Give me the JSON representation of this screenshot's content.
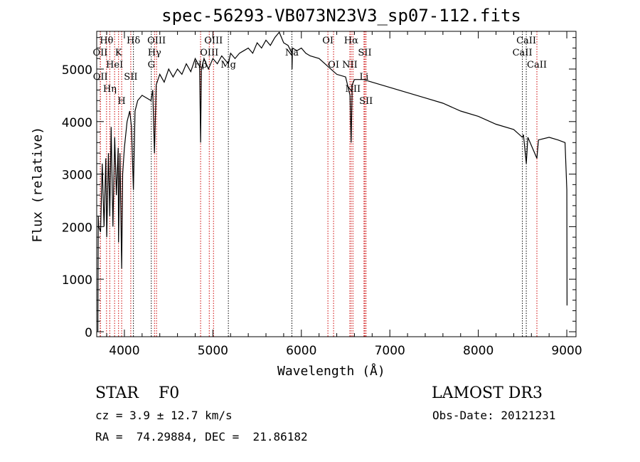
{
  "chart_data": {
    "type": "line",
    "title": "spec-56293-VB073N23V3_sp07-112.fits",
    "xlabel": "Wavelength (Å)",
    "ylabel": "Flux (relative)",
    "xlim": [
      3687,
      9104
    ],
    "ylim": [
      -95,
      5718
    ],
    "xticks": [
      4000,
      5000,
      6000,
      7000,
      8000,
      9000
    ],
    "xtick_labels": [
      "4000",
      "5000",
      "6000",
      "7000",
      "8000",
      "9000"
    ],
    "yticks": [
      0,
      1000,
      2000,
      3000,
      4000,
      5000
    ],
    "ytick_labels": [
      "0",
      "1000",
      "2000",
      "3000",
      "4000",
      "5000"
    ],
    "series": [
      {
        "name": "spectrum",
        "color": "#000000",
        "x": [
          3700,
          3705,
          3710,
          3730,
          3750,
          3770,
          3790,
          3800,
          3820,
          3835,
          3850,
          3870,
          3890,
          3910,
          3930,
          3934,
          3950,
          3969,
          3980,
          4000,
          4030,
          4060,
          4080,
          4102,
          4120,
          4150,
          4200,
          4250,
          4300,
          4320,
          4340,
          4360,
          4400,
          4450,
          4500,
          4550,
          4600,
          4650,
          4700,
          4750,
          4800,
          4850,
          4861,
          4870,
          4900,
          4950,
          5000,
          5050,
          5100,
          5175,
          5200,
          5250,
          5300,
          5350,
          5400,
          5450,
          5500,
          5550,
          5600,
          5650,
          5700,
          5750,
          5800,
          5850,
          5893,
          5895,
          5900,
          5950,
          6000,
          6050,
          6100,
          6200,
          6300,
          6400,
          6500,
          6550,
          6563,
          6575,
          6600,
          6700,
          6800,
          7000,
          7200,
          7400,
          7600,
          7800,
          8000,
          8200,
          8400,
          8498,
          8510,
          8542,
          8560,
          8662,
          8680,
          8800,
          8900,
          8980,
          9000,
          9003
        ],
        "y": [
          0,
          2200,
          2000,
          1900,
          3200,
          2000,
          3300,
          1800,
          3400,
          2200,
          3900,
          2000,
          3700,
          2600,
          3500,
          1700,
          3400,
          1200,
          3000,
          3500,
          4000,
          4200,
          3900,
          2700,
          4200,
          4400,
          4500,
          4450,
          4400,
          4600,
          3400,
          4700,
          4900,
          4750,
          5000,
          4850,
          5000,
          4900,
          5100,
          4950,
          5200,
          5050,
          3600,
          5000,
          5200,
          5000,
          5200,
          5100,
          5250,
          5100,
          5300,
          5200,
          5300,
          5350,
          5400,
          5300,
          5500,
          5400,
          5550,
          5450,
          5600,
          5700,
          5500,
          5450,
          5300,
          5000,
          5400,
          5350,
          5400,
          5300,
          5250,
          5200,
          5050,
          4900,
          4850,
          4500,
          3600,
          4700,
          4800,
          4800,
          4750,
          4650,
          4550,
          4450,
          4350,
          4200,
          4100,
          3950,
          3850,
          3700,
          3750,
          3200,
          3700,
          3300,
          3650,
          3700,
          3650,
          3600,
          2700,
          500
        ]
      }
    ],
    "lines": [
      {
        "label": "Hθ",
        "wave": 3798,
        "color": "#cc0000"
      },
      {
        "label": "K",
        "wave": 3934,
        "color": "#cc0000"
      },
      {
        "label": "Hδ",
        "wave": 4102,
        "color": "#000000"
      },
      {
        "label": "OIII",
        "wave": 4363,
        "color": "#cc0000"
      },
      {
        "label": "OIII",
        "wave": 5007,
        "color": "#cc0000"
      },
      {
        "label": "OI",
        "wave": 6300,
        "color": "#cc0000"
      },
      {
        "label": "Hα",
        "wave": 6563,
        "color": "#cc0000"
      },
      {
        "label": "SII",
        "wave": 6717,
        "color": "#cc0000"
      },
      {
        "label": "CaII",
        "wave": 8542,
        "color": "#000000"
      },
      {
        "label": "OII",
        "wave": 3727,
        "color": "#cc0000"
      },
      {
        "label": "HeI",
        "wave": 3889,
        "color": "#cc0000"
      },
      {
        "label": "SII",
        "wave": 4072,
        "color": "#cc0000"
      },
      {
        "label": "Hγ",
        "wave": 4340,
        "color": "#cc0000"
      },
      {
        "label": "OIII",
        "wave": 4959,
        "color": "#cc0000"
      },
      {
        "label": "Na",
        "wave": 5893,
        "color": "#000000"
      },
      {
        "label": "NII",
        "wave": 6548,
        "color": "#cc0000"
      },
      {
        "label": "Li",
        "wave": 6708,
        "color": "#cc0000"
      },
      {
        "label": "CaII",
        "wave": 8498,
        "color": "#000000"
      },
      {
        "label": "OII",
        "wave": 3729,
        "color": "#cc0000"
      },
      {
        "label": "Hη",
        "wave": 3835,
        "color": "#cc0000"
      },
      {
        "label": "H",
        "wave": 3969,
        "color": "#cc0000"
      },
      {
        "label": "G",
        "wave": 4304,
        "color": "#000000"
      },
      {
        "label": "Hβ",
        "wave": 4861,
        "color": "#cc0000"
      },
      {
        "label": "Mg",
        "wave": 5175,
        "color": "#000000"
      },
      {
        "label": "OI",
        "wave": 6364,
        "color": "#cc0000"
      },
      {
        "label": "NII",
        "wave": 6583,
        "color": "#cc0000"
      },
      {
        "label": "SII",
        "wave": 6731,
        "color": "#cc0000"
      },
      {
        "label": "CaII",
        "wave": 8662,
        "color": "#cc0000"
      }
    ]
  },
  "info": {
    "class_label": "STAR    F0",
    "survey": "LAMOST DR3",
    "cz": "cz = 3.9 ± 12.7 km/s",
    "obs_date": "Obs-Date: 20121231",
    "coords": "RA =  74.29884, DEC =  21.86182"
  }
}
